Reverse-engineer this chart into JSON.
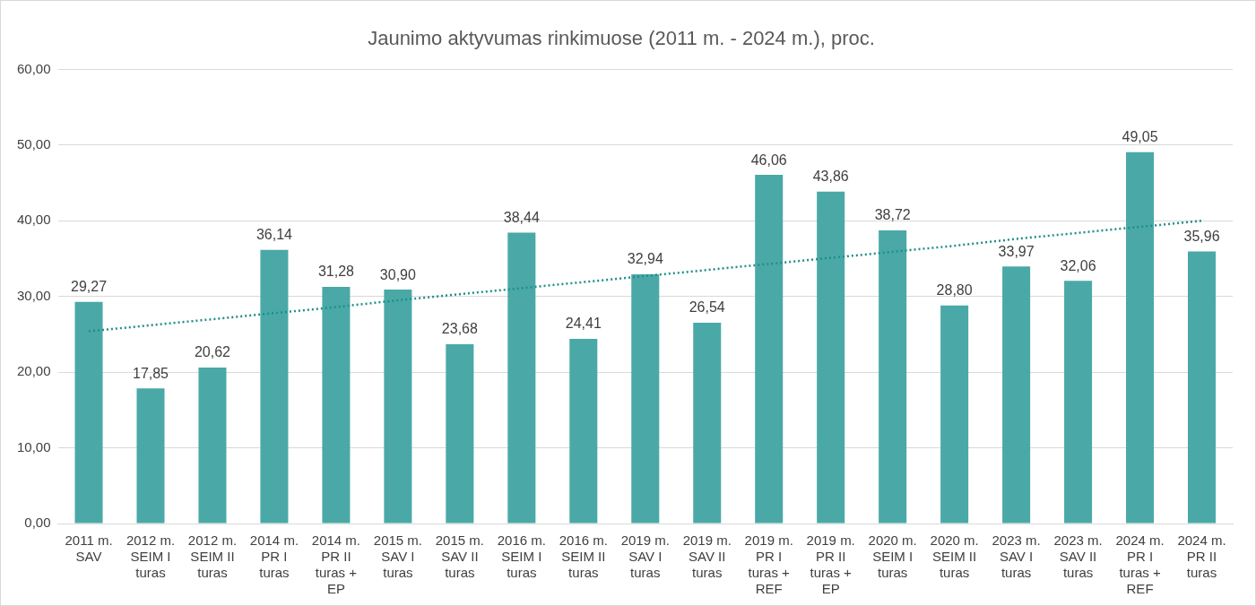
{
  "chart_data": {
    "type": "bar",
    "title": "Jaunimo aktyvumas rinkimuose (2011 m. - 2024 m.), proc.",
    "categories": [
      "2011 m. SAV",
      "2012 m. SEIM I turas",
      "2012 m. SEIM II turas",
      "2014 m. PR I turas",
      "2014 m. PR II turas + EP",
      "2015 m. SAV I turas",
      "2015 m. SAV II turas",
      "2016 m. SEIM I turas",
      "2016 m. SEIM II turas",
      "2019 m. SAV I turas",
      "2019 m. SAV II turas",
      "2019 m. PR I turas + REF",
      "2019 m. PR II turas + EP",
      "2020 m. SEIM I turas",
      "2020 m. SEIM II turas",
      "2023 m. SAV I turas",
      "2023 m. SAV II turas",
      "2024 m. PR I turas + REF",
      "2024 m. PR II turas"
    ],
    "series": [
      {
        "color": "#4aa9a6",
        "values": [
          29.27,
          17.85,
          20.62,
          36.14,
          31.28,
          30.9,
          23.68,
          38.44,
          24.41,
          32.94,
          26.54,
          46.06,
          43.86,
          38.72,
          28.8,
          33.97,
          32.06,
          49.05,
          35.96
        ],
        "value_labels": [
          "29,27",
          "17,85",
          "20,62",
          "36,14",
          "31,28",
          "30,90",
          "23,68",
          "38,44",
          "24,41",
          "32,94",
          "26,54",
          "46,06",
          "43,86",
          "38,72",
          "28,80",
          "33,97",
          "32,06",
          "49,05",
          "35,96"
        ]
      },
      {
        "type": "line",
        "color": "#1f8f88",
        "line_style": "dotted",
        "marker": "none",
        "values": [
          25.4,
          26.2,
          27.0,
          27.8,
          28.6,
          29.5,
          30.3,
          31.1,
          31.9,
          32.7,
          33.5,
          34.3,
          35.1,
          35.9,
          36.7,
          37.6,
          38.4,
          39.2,
          40.0
        ]
      }
    ],
    "ylim": [
      0,
      60
    ],
    "yticks": [
      {
        "value": 0,
        "label": "0,00"
      },
      {
        "value": 10,
        "label": "10,00"
      },
      {
        "value": 20,
        "label": "20,00"
      },
      {
        "value": 30,
        "label": "30,00"
      },
      {
        "value": 40,
        "label": "40,00"
      },
      {
        "value": 50,
        "label": "50,00"
      },
      {
        "value": 60,
        "label": "60,00"
      }
    ],
    "grid": "y",
    "legend": false
  }
}
